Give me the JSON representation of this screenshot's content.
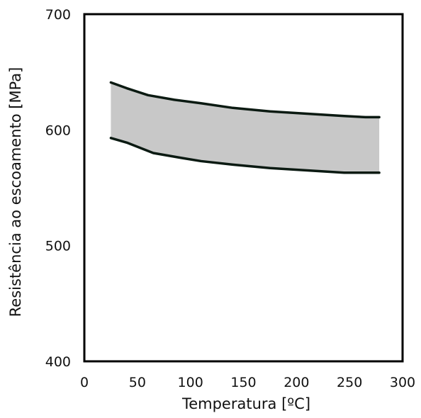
{
  "chart_data": {
    "type": "area",
    "title": "",
    "xlabel": "Temperatura [ºC]",
    "ylabel": "Resistência ao escoamento [MPa]",
    "xlim": [
      0,
      300
    ],
    "ylim": [
      400,
      700
    ],
    "xticks": [
      0,
      50,
      100,
      150,
      200,
      250,
      300
    ],
    "yticks": [
      400,
      500,
      600,
      700
    ],
    "xtick_labels": [
      "0",
      "50",
      "100",
      "150",
      "200",
      "250",
      "300"
    ],
    "ytick_labels": [
      "400",
      "500",
      "600",
      "700"
    ],
    "grid": false,
    "series": [
      {
        "x": [
          25,
          40,
          60,
          85,
          110,
          140,
          175,
          210,
          245,
          265,
          278
        ],
        "values": [
          641,
          636,
          630,
          626,
          623,
          619,
          616,
          614,
          612,
          611,
          611
        ]
      },
      {
        "x": [
          25,
          40,
          65,
          90,
          110,
          140,
          175,
          210,
          245,
          278
        ],
        "values": [
          593,
          589,
          580,
          576,
          573,
          570,
          567,
          565,
          563,
          563
        ]
      }
    ],
    "band_fill": "#c8c8c8",
    "line_color": "#0b1a12",
    "frame_color": "#000000"
  }
}
